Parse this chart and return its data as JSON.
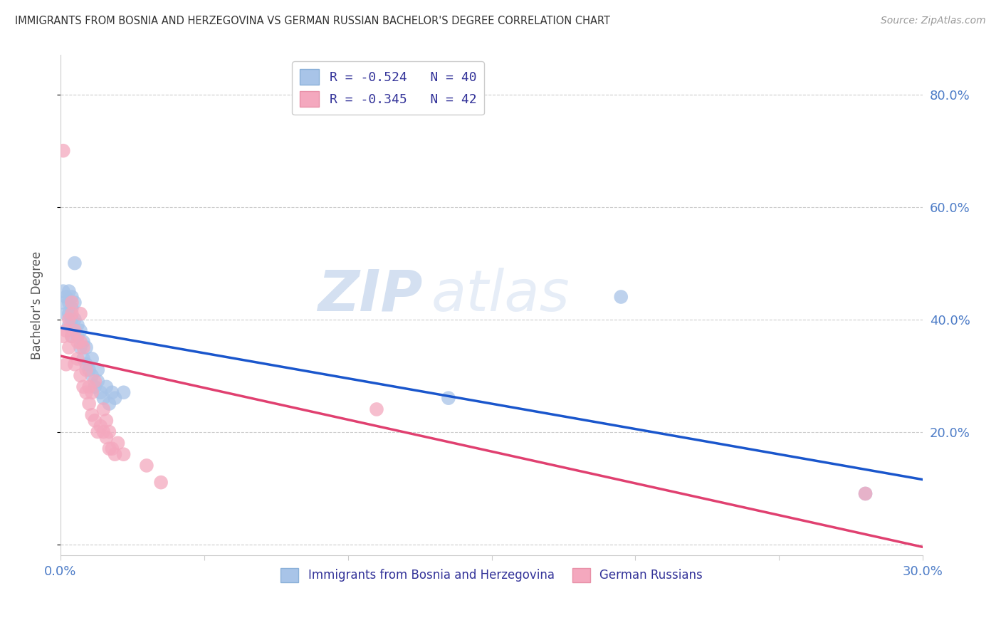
{
  "title": "IMMIGRANTS FROM BOSNIA AND HERZEGOVINA VS GERMAN RUSSIAN BACHELOR'S DEGREE CORRELATION CHART",
  "source": "Source: ZipAtlas.com",
  "ylabel": "Bachelor's Degree",
  "xlim": [
    0.0,
    0.3
  ],
  "ylim": [
    -0.02,
    0.87
  ],
  "yticks": [
    0.0,
    0.2,
    0.4,
    0.6,
    0.8
  ],
  "xticks": [
    0.0,
    0.05,
    0.1,
    0.15,
    0.2,
    0.25,
    0.3
  ],
  "series1_label": "Immigrants from Bosnia and Herzegovina",
  "series2_label": "German Russians",
  "series1_color": "#a8c4e8",
  "series2_color": "#f4a8be",
  "series1_line_color": "#1a56cc",
  "series2_line_color": "#e04070",
  "legend_r1": "R = -0.524",
  "legend_n1": "N = 40",
  "legend_r2": "R = -0.345",
  "legend_n2": "N = 42",
  "grid_color": "#cccccc",
  "background_color": "#ffffff",
  "title_color": "#333333",
  "axis_label_color": "#4d7cc7",
  "watermark_zip": "ZIP",
  "watermark_atlas": "atlas",
  "series1_x": [
    0.001,
    0.001,
    0.002,
    0.002,
    0.003,
    0.003,
    0.003,
    0.003,
    0.004,
    0.004,
    0.004,
    0.004,
    0.005,
    0.005,
    0.005,
    0.005,
    0.006,
    0.006,
    0.007,
    0.007,
    0.008,
    0.008,
    0.009,
    0.009,
    0.01,
    0.011,
    0.011,
    0.012,
    0.013,
    0.013,
    0.014,
    0.015,
    0.016,
    0.017,
    0.018,
    0.019,
    0.022,
    0.135,
    0.195,
    0.28
  ],
  "series1_y": [
    0.43,
    0.45,
    0.41,
    0.44,
    0.39,
    0.41,
    0.43,
    0.45,
    0.37,
    0.4,
    0.42,
    0.44,
    0.38,
    0.4,
    0.43,
    0.5,
    0.37,
    0.39,
    0.35,
    0.38,
    0.33,
    0.36,
    0.32,
    0.35,
    0.31,
    0.3,
    0.33,
    0.28,
    0.29,
    0.31,
    0.27,
    0.26,
    0.28,
    0.25,
    0.27,
    0.26,
    0.27,
    0.26,
    0.44,
    0.09
  ],
  "series2_x": [
    0.001,
    0.001,
    0.002,
    0.002,
    0.003,
    0.003,
    0.004,
    0.004,
    0.004,
    0.005,
    0.005,
    0.006,
    0.006,
    0.007,
    0.007,
    0.007,
    0.008,
    0.008,
    0.009,
    0.009,
    0.01,
    0.01,
    0.011,
    0.011,
    0.012,
    0.012,
    0.013,
    0.014,
    0.015,
    0.015,
    0.016,
    0.016,
    0.017,
    0.017,
    0.018,
    0.019,
    0.02,
    0.022,
    0.03,
    0.035,
    0.11,
    0.28
  ],
  "series2_y": [
    0.7,
    0.37,
    0.32,
    0.38,
    0.35,
    0.4,
    0.37,
    0.41,
    0.43,
    0.32,
    0.38,
    0.33,
    0.36,
    0.3,
    0.36,
    0.41,
    0.28,
    0.35,
    0.27,
    0.31,
    0.25,
    0.28,
    0.23,
    0.27,
    0.22,
    0.29,
    0.2,
    0.21,
    0.2,
    0.24,
    0.19,
    0.22,
    0.17,
    0.2,
    0.17,
    0.16,
    0.18,
    0.16,
    0.14,
    0.11,
    0.24,
    0.09
  ],
  "trendline1_x0": 0.0,
  "trendline1_y0": 0.385,
  "trendline1_x1": 0.3,
  "trendline1_y1": 0.115,
  "trendline2_x0": 0.0,
  "trendline2_y0": 0.335,
  "trendline2_x1": 0.3,
  "trendline2_y1": -0.005
}
